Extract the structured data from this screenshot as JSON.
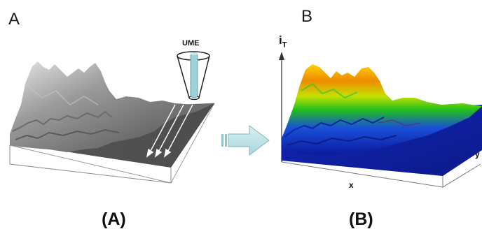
{
  "panels": {
    "left_letter": "A",
    "right_letter": "B"
  },
  "captions": {
    "left": "(A)",
    "right": "(B)"
  },
  "labels": {
    "ume": "UME",
    "i_main": "i",
    "i_sub": "T",
    "x_axis": "x",
    "y_axis": "y"
  },
  "colors": {
    "surface_gray_light": "#e8e8e8",
    "surface_gray_dark": "#3f3f3f",
    "surface_blue": "#0a1fa8",
    "surface_green": "#22c01a",
    "surface_yellow": "#f4d400",
    "surface_orange": "#f08a00",
    "arrow_fill": "#bde3e6",
    "ume_rod": "#9dd1d6"
  }
}
